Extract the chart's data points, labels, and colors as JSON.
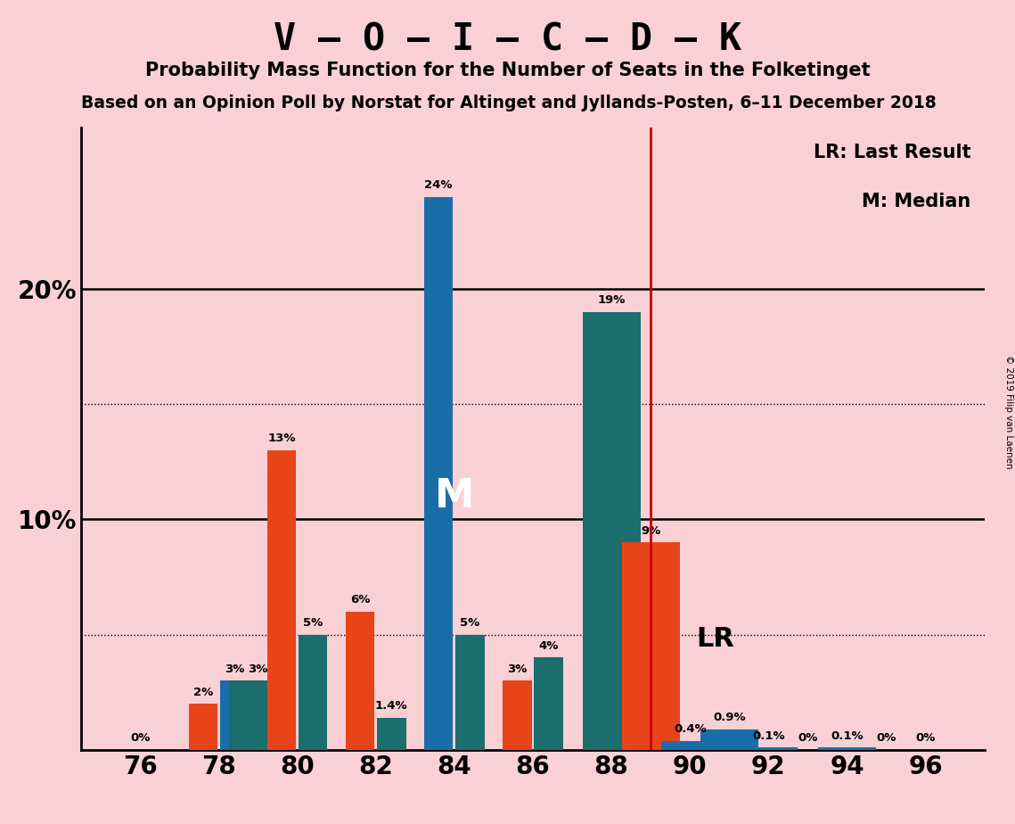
{
  "title1": "V – O – I – C – D – K",
  "title2": "Probability Mass Function for the Number of Seats in the Folketinget",
  "title3": "Based on an Opinion Poll by Norstat for Altinget and Jyllands-Posten, 6–11 December 2018",
  "copyright": "© 2019 Filip van Laenen",
  "legend_lr": "LR: Last Result",
  "legend_m": "M: Median",
  "background_color": "#f9d0d4",
  "bar_color_orange": "#e8441a",
  "bar_color_blue": "#1a6ea8",
  "bar_color_teal": "#1a6e6e",
  "lr_line_color": "#cc0000",
  "lr_line_x": 89,
  "bars": [
    {
      "seat": 76,
      "color": "orange",
      "value": 0.0,
      "label": "0%"
    },
    {
      "seat": 78,
      "color": "orange",
      "value": 2.0,
      "label": "2%"
    },
    {
      "seat": 78,
      "color": "blue",
      "value": 3.0,
      "label": "3%"
    },
    {
      "seat": 79,
      "color": "teal",
      "value": 3.0,
      "label": "3%"
    },
    {
      "seat": 80,
      "color": "orange",
      "value": 13.0,
      "label": "13%"
    },
    {
      "seat": 80,
      "color": "teal",
      "value": 5.0,
      "label": "5%"
    },
    {
      "seat": 82,
      "color": "orange",
      "value": 6.0,
      "label": "6%"
    },
    {
      "seat": 82,
      "color": "teal",
      "value": 1.4,
      "label": "1.4%"
    },
    {
      "seat": 84,
      "color": "blue",
      "value": 24.0,
      "label": "24%"
    },
    {
      "seat": 84,
      "color": "teal",
      "value": 5.0,
      "label": "5%"
    },
    {
      "seat": 86,
      "color": "orange",
      "value": 3.0,
      "label": "3%"
    },
    {
      "seat": 86,
      "color": "teal",
      "value": 4.0,
      "label": "4%"
    },
    {
      "seat": 88,
      "color": "teal",
      "value": 19.0,
      "label": "19%"
    },
    {
      "seat": 89,
      "color": "orange",
      "value": 9.0,
      "label": "9%"
    },
    {
      "seat": 90,
      "color": "blue",
      "value": 0.4,
      "label": "0.4%"
    },
    {
      "seat": 91,
      "color": "blue",
      "value": 0.9,
      "label": "0.9%"
    },
    {
      "seat": 92,
      "color": "blue",
      "value": 0.1,
      "label": "0.1%"
    },
    {
      "seat": 93,
      "color": "orange",
      "value": 0.0,
      "label": "0%"
    },
    {
      "seat": 94,
      "color": "blue",
      "value": 0.1,
      "label": "0.1%"
    },
    {
      "seat": 95,
      "color": "orange",
      "value": 0.0,
      "label": "0%"
    },
    {
      "seat": 96,
      "color": "orange",
      "value": 0.0,
      "label": "0%"
    }
  ],
  "zero_labels": [
    {
      "x": 76,
      "label": "0%"
    },
    {
      "x": 93,
      "label": "0%"
    },
    {
      "x": 95,
      "label": "0%"
    },
    {
      "x": 96,
      "label": "0%"
    }
  ],
  "ylim": [
    0,
    27
  ],
  "solid_hlines": [
    10,
    20
  ],
  "dotted_hlines": [
    5,
    15
  ],
  "x_ticks": [
    76,
    78,
    80,
    82,
    84,
    86,
    88,
    90,
    92,
    94,
    96
  ],
  "xlim": [
    74.5,
    97.5
  ]
}
